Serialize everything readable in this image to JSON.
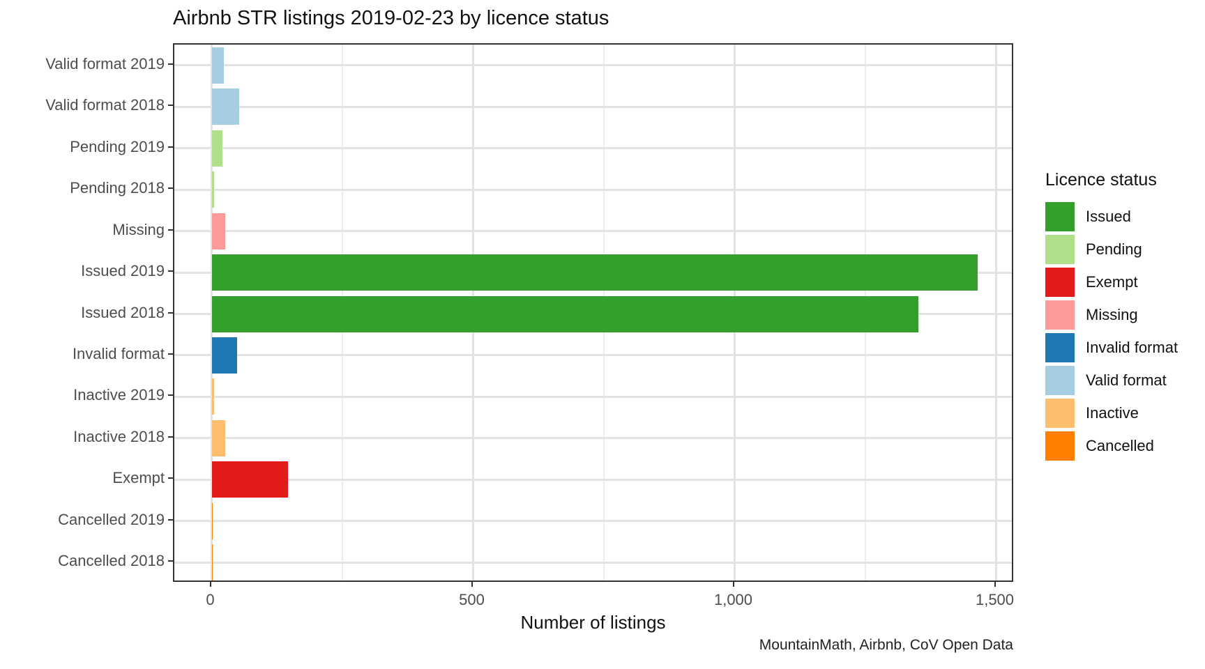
{
  "caption": "MountainMath, Airbnb, CoV Open Data",
  "chart_data": {
    "type": "bar",
    "orientation": "horizontal",
    "title": "Airbnb STR listings 2019-02-23 by licence status",
    "xlabel": "Number of listings",
    "ylabel": "",
    "grid": true,
    "x_axis": {
      "ticks": [
        0,
        500,
        1000,
        1500
      ],
      "tick_labels": [
        "0",
        "500",
        "1,000",
        "1,500"
      ],
      "minor_ticks": [
        250,
        750,
        1250
      ],
      "range": [
        -73,
        1539
      ]
    },
    "categories": [
      "Valid format 2019",
      "Valid format 2018",
      "Pending 2019",
      "Pending 2018",
      "Missing",
      "Issued 2019",
      "Issued 2018",
      "Invalid format",
      "Inactive 2019",
      "Inactive 2018",
      "Exempt",
      "Cancelled 2019",
      "Cancelled 2018"
    ],
    "bars": [
      {
        "category": "Valid format 2019",
        "status": "Valid format",
        "value": 23
      },
      {
        "category": "Valid format 2018",
        "status": "Valid format",
        "value": 52
      },
      {
        "category": "Pending 2019",
        "status": "Pending",
        "value": 21
      },
      {
        "category": "Pending 2018",
        "status": "Pending",
        "value": 5
      },
      {
        "category": "Missing",
        "status": "Missing",
        "value": 26
      },
      {
        "category": "Issued 2019",
        "status": "Issued",
        "value": 1464
      },
      {
        "category": "Issued 2018",
        "status": "Issued",
        "value": 1351
      },
      {
        "category": "Invalid format",
        "status": "Invalid format",
        "value": 48
      },
      {
        "category": "Inactive 2019",
        "status": "Inactive",
        "value": 5
      },
      {
        "category": "Inactive 2018",
        "status": "Inactive",
        "value": 26
      },
      {
        "category": "Exempt",
        "status": "Exempt",
        "value": 146
      },
      {
        "category": "Cancelled 2019",
        "status": "Cancelled",
        "value": 2
      },
      {
        "category": "Cancelled 2018",
        "status": "Cancelled",
        "value": 2
      }
    ],
    "legend": {
      "title": "Licence status",
      "position": "right",
      "entries": [
        {
          "label": "Issued",
          "color": "#33a02c"
        },
        {
          "label": "Pending",
          "color": "#b2df8a"
        },
        {
          "label": "Exempt",
          "color": "#e31a1c"
        },
        {
          "label": "Missing",
          "color": "#fb9a99"
        },
        {
          "label": "Invalid format",
          "color": "#1f78b4"
        },
        {
          "label": "Valid format",
          "color": "#a6cee3"
        },
        {
          "label": "Inactive",
          "color": "#fdbf6f"
        },
        {
          "label": "Cancelled",
          "color": "#ff7f00"
        }
      ]
    }
  }
}
